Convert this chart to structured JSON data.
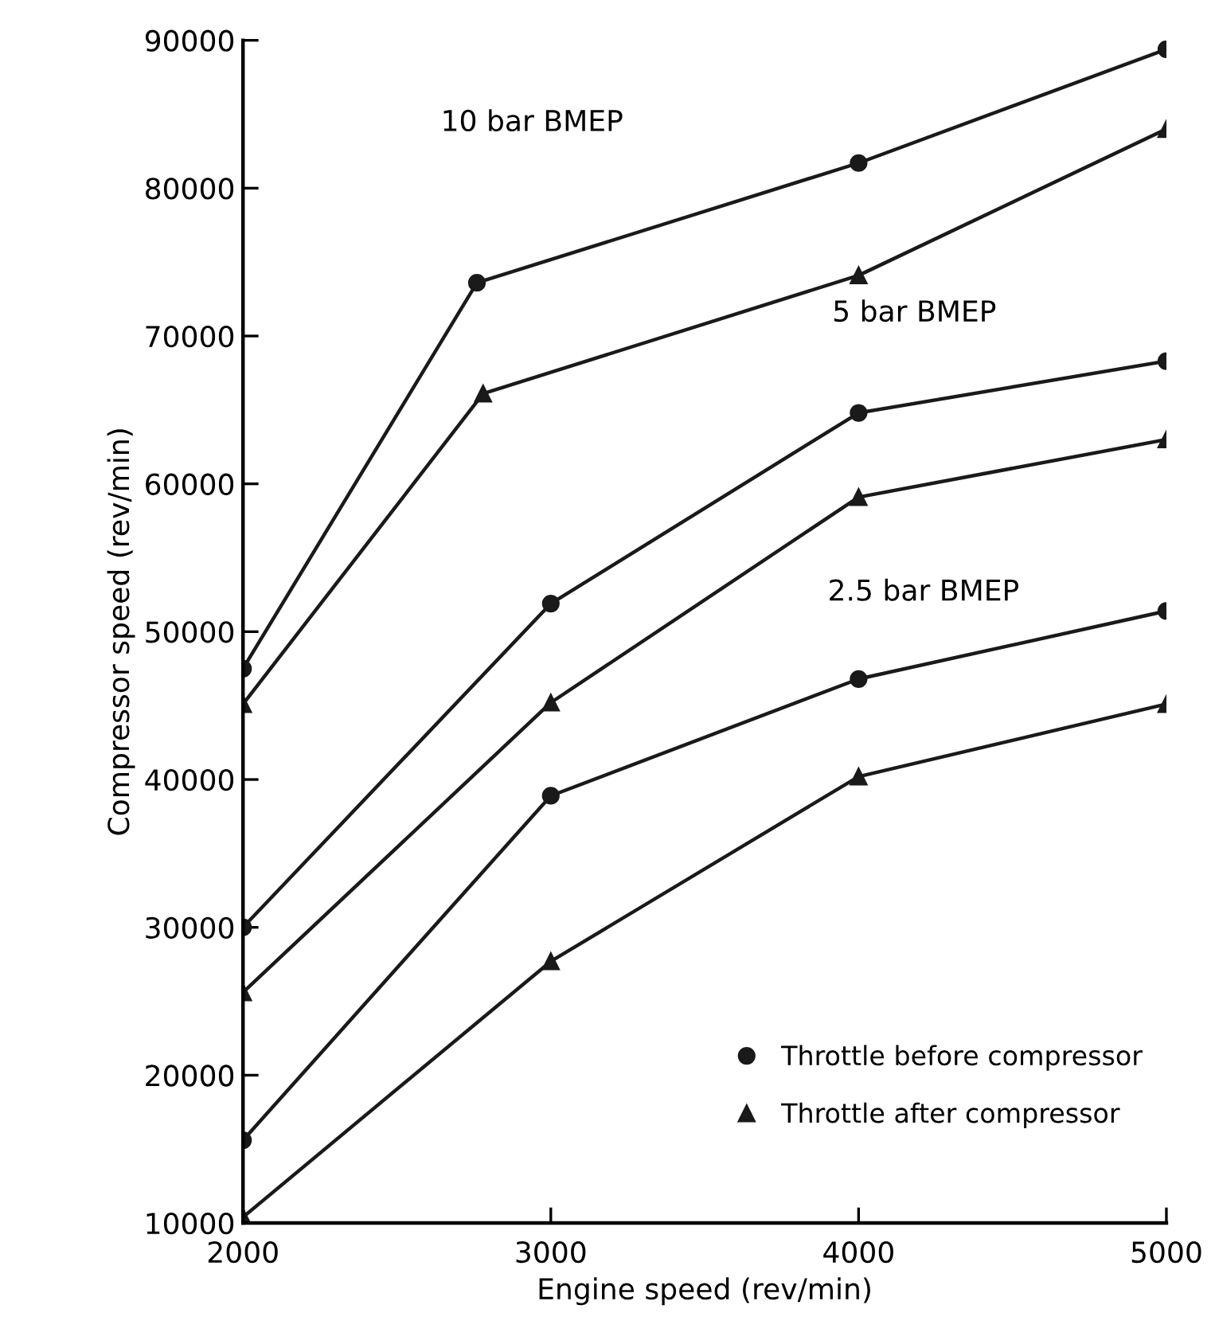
{
  "chart_data": {
    "type": "line",
    "xlabel": "Engine speed (rev/min)",
    "ylabel": "Compressor speed (rev/min)",
    "xlim": [
      2000,
      5000
    ],
    "xticks": [
      2000,
      3000,
      4000,
      5000
    ],
    "ylim": [
      10000,
      90000
    ],
    "yticks": [
      10000,
      20000,
      30000,
      40000,
      50000,
      60000,
      70000,
      80000,
      90000
    ],
    "grid": false,
    "legend": "bottom right",
    "line_style": "solid",
    "series": [
      {
        "name": "Throttle before compressor",
        "color": "#1a1a1a",
        "marker": "circle",
        "x": [
          2000,
          2760,
          4000,
          5000
        ],
        "values": [
          47500,
          73600,
          81700,
          89400
        ]
      },
      {
        "name": "Throttle after compressor",
        "color": "#1a1a1a",
        "marker": "triangle",
        "x": [
          2000,
          2780,
          4000,
          5000
        ],
        "values": [
          45100,
          66100,
          74100,
          84000
        ]
      },
      {
        "color": "#1a1a1a",
        "marker": "circle",
        "x": [
          2000,
          3000,
          4000,
          5000
        ],
        "values": [
          30000,
          51900,
          64800,
          68300
        ]
      },
      {
        "color": "#1a1a1a",
        "marker": "triangle",
        "x": [
          2000,
          3000,
          4000,
          5000
        ],
        "values": [
          25600,
          45200,
          59100,
          63000
        ]
      },
      {
        "color": "#1a1a1a",
        "marker": "circle",
        "x": [
          2000,
          3000,
          4000,
          5000
        ],
        "values": [
          15600,
          38900,
          46800,
          51400
        ]
      },
      {
        "color": "#1a1a1a",
        "marker": "triangle",
        "x": [
          2000,
          3000,
          4000,
          5000
        ],
        "values": [
          10400,
          27700,
          40200,
          45100
        ]
      }
    ],
    "annotations": [
      "10 bar BMEP",
      "5 bar BMEP",
      "2.5 bar BMEP"
    ]
  }
}
